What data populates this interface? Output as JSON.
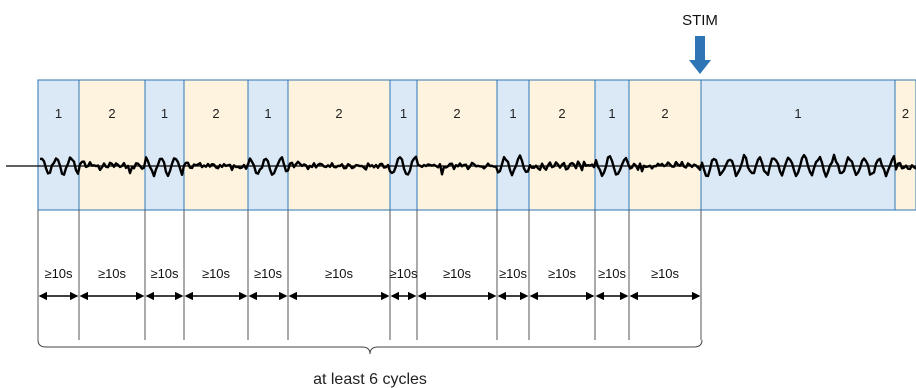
{
  "stim_label": "STIM",
  "caption": "at least 6 cycles",
  "colors": {
    "state1_fill": "#dbe9f7",
    "state2_fill": "#fdf3df",
    "segment_border": "#2e75b6",
    "arrow": "#2e75b6",
    "trace": "#000000"
  },
  "segments": [
    {
      "label": "1",
      "state": 1,
      "duration": "≥10s"
    },
    {
      "label": "2",
      "state": 2,
      "duration": "≥10s"
    },
    {
      "label": "1",
      "state": 1,
      "duration": "≥10s"
    },
    {
      "label": "2",
      "state": 2,
      "duration": "≥10s"
    },
    {
      "label": "1",
      "state": 1,
      "duration": "≥10s"
    },
    {
      "label": "2",
      "state": 2,
      "duration": "≥10s"
    },
    {
      "label": "1",
      "state": 1,
      "duration": "≥10s"
    },
    {
      "label": "2",
      "state": 2,
      "duration": "≥10s"
    },
    {
      "label": "1",
      "state": 1,
      "duration": "≥10s"
    },
    {
      "label": "2",
      "state": 2,
      "duration": "≥10s"
    },
    {
      "label": "1",
      "state": 1,
      "duration": "≥10s"
    },
    {
      "label": "2",
      "state": 2,
      "duration": "≥10s"
    },
    {
      "label": "1",
      "state": 1
    },
    {
      "label": "2",
      "state": 2
    }
  ]
}
